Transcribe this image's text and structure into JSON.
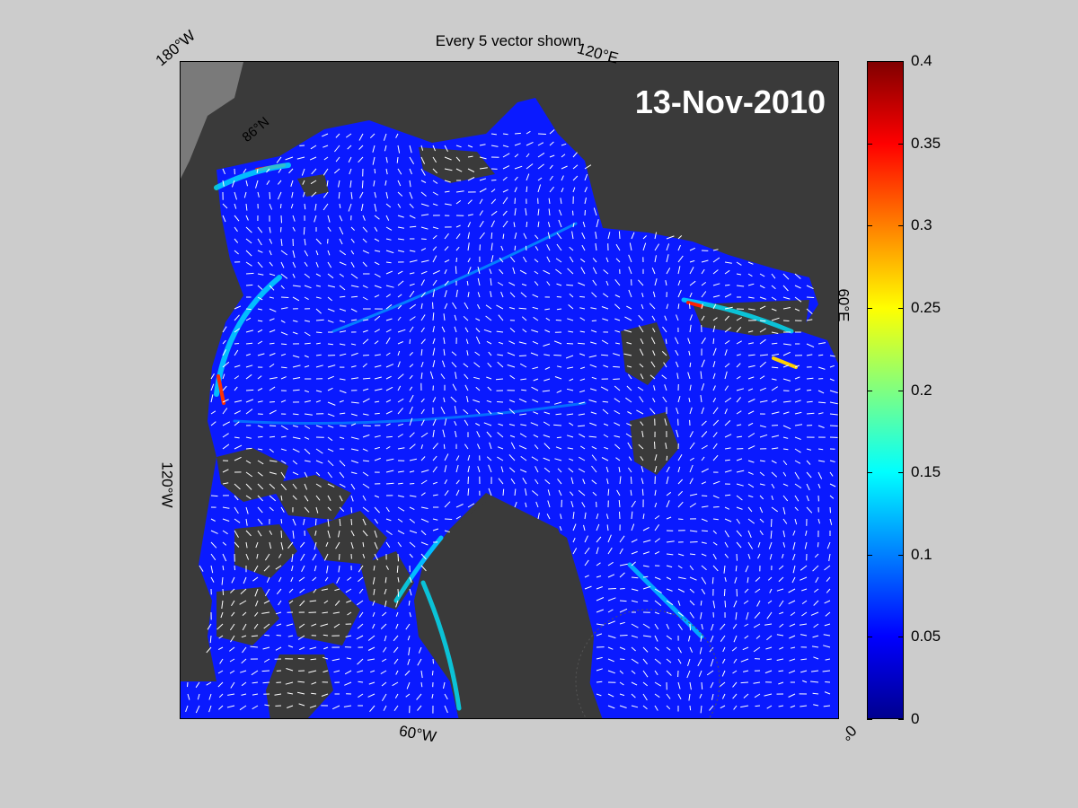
{
  "title": "Every 5 vector shown",
  "date_label": "13-Nov-2010",
  "edge_labels": {
    "top_left": "180°W",
    "top_right": "120°E",
    "right": "60°E",
    "bottom_right": "0°",
    "bottom": "60°W",
    "left": "120°W",
    "inner_lat": "86°N"
  },
  "colorbar": {
    "colormap": "jet",
    "range": [
      0,
      0.4
    ],
    "tick_labels": [
      "0",
      "0.05",
      "0.1",
      "0.15",
      "0.2",
      "0.25",
      "0.3",
      "0.35",
      "0.4"
    ]
  },
  "colors": {
    "background": "#cccccc",
    "land": "#3a3a3a",
    "land_light": "#7a7a7a",
    "ocean_low": "#0a1aff",
    "vectors": "#ffffff",
    "date_text": "#ffffff"
  }
}
